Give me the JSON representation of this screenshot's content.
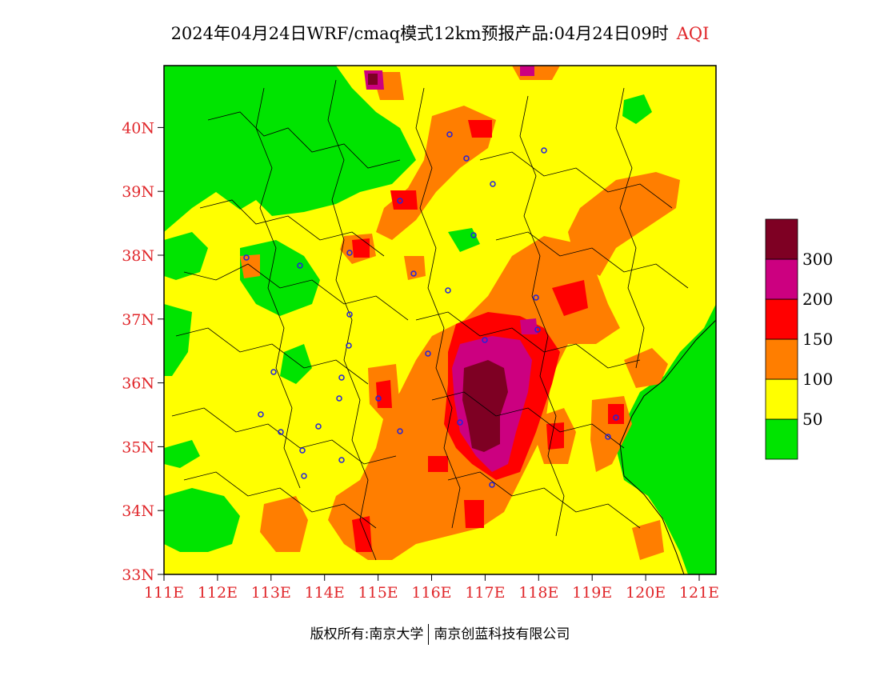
{
  "title": {
    "main": "2024年04月24日WRF/cmaq模式12km预报产品:04月24日09时",
    "variable": "AQI"
  },
  "axes": {
    "lat_labels": [
      "33N",
      "34N",
      "35N",
      "36N",
      "37N",
      "38N",
      "39N",
      "40N"
    ],
    "lon_labels": [
      "111E",
      "112E",
      "113E",
      "114E",
      "115E",
      "116E",
      "117E",
      "118E",
      "119E",
      "120E",
      "121E"
    ],
    "label_color": "#e0262a"
  },
  "legend": {
    "levels": [
      {
        "label": "",
        "color": "#00e400"
      },
      {
        "label": "50",
        "color": "#ffff00"
      },
      {
        "label": "100",
        "color": "#ff7e00"
      },
      {
        "label": "150",
        "color": "#ff0000"
      },
      {
        "label": "200",
        "color": "#cc0080"
      },
      {
        "label": "300",
        "color": "#7e0023"
      }
    ]
  },
  "footer": {
    "copyright": "版权所有:南京大学",
    "company": "南京创蓝科技有限公司"
  }
}
